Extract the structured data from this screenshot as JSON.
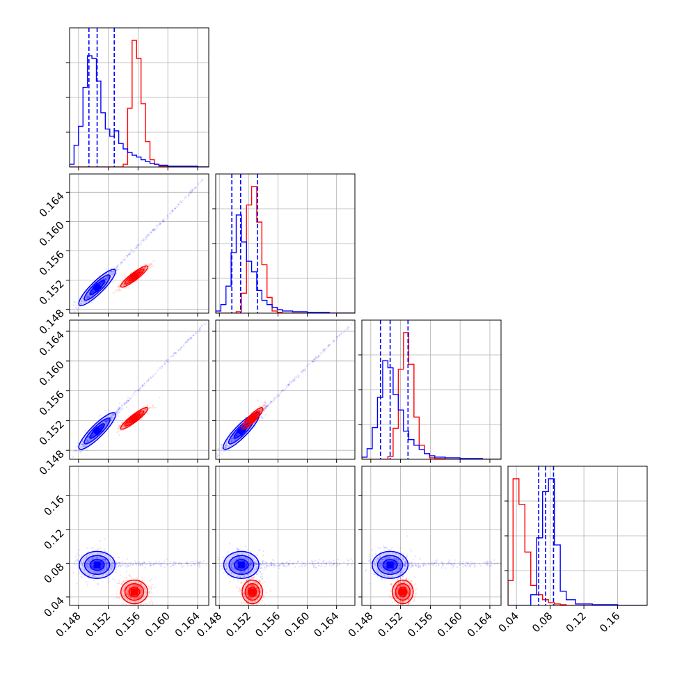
{
  "chart_data": {
    "type": "corner",
    "n_params": 4,
    "series": [
      {
        "name": "",
        "color": "#0000ff"
      },
      {
        "name": "",
        "color": "#ff0000"
      }
    ],
    "axis_ranges": [
      [
        0.1468,
        0.1655
      ],
      [
        0.1475,
        0.1665
      ],
      [
        0.1468,
        0.1655
      ],
      [
        0.03,
        0.195
      ]
    ],
    "ticks": [
      {
        "values": [
          0.148,
          0.152,
          0.156,
          0.16,
          0.164
        ],
        "labels": [
          "0.148",
          "0.152",
          "0.156",
          "0.160",
          "0.164"
        ]
      },
      {
        "values": [
          0.148,
          0.152,
          0.156,
          0.16,
          0.164
        ],
        "labels": [
          "0.148",
          "0.152",
          "0.156",
          "0.160",
          "0.164"
        ]
      },
      {
        "values": [
          0.148,
          0.152,
          0.156,
          0.16,
          0.164
        ],
        "labels": [
          "0.148",
          "0.152",
          "0.156",
          "0.160",
          "0.164"
        ]
      },
      {
        "values": [
          0.04,
          0.08,
          0.12,
          0.16
        ],
        "labels": [
          "0.04",
          "0.08",
          "0.12",
          "0.16"
        ]
      }
    ],
    "histograms": [
      {
        "edges": [
          0.1468,
          0.1474,
          0.148,
          0.1486,
          0.1492,
          0.1498,
          0.1504,
          0.151,
          0.1516,
          0.1522,
          0.1528,
          0.1534,
          0.154,
          0.1546,
          0.1552,
          0.1558,
          0.1564,
          0.157,
          0.1576,
          0.1582,
          0.1588,
          0.16,
          0.162,
          0.164,
          0.1655
        ],
        "blue": [
          3,
          24,
          45,
          88,
          123,
          120,
          95,
          60,
          42,
          34,
          40,
          26,
          20,
          16,
          13,
          11,
          8,
          6,
          4,
          3,
          2,
          1,
          1,
          0
        ],
        "red": [
          0,
          0,
          0,
          0,
          0,
          0,
          0,
          0,
          0,
          0,
          0,
          0,
          3,
          65,
          140,
          120,
          70,
          28,
          8,
          3,
          1,
          0,
          0,
          0
        ],
        "blue_quantiles": [
          0.1494,
          0.1505,
          0.1528
        ]
      },
      {
        "edges": [
          0.1475,
          0.1482,
          0.1489,
          0.1496,
          0.1503,
          0.151,
          0.1517,
          0.1524,
          0.1531,
          0.1538,
          0.1545,
          0.1552,
          0.1559,
          0.1566,
          0.158,
          0.16,
          0.163,
          0.1665
        ],
        "blue": [
          3,
          12,
          38,
          85,
          138,
          100,
          73,
          58,
          32,
          18,
          12,
          8,
          5,
          3,
          2,
          1,
          0
        ],
        "red": [
          0,
          0,
          0,
          0,
          2,
          28,
          152,
          178,
          128,
          68,
          22,
          3,
          1,
          0,
          0,
          0,
          0
        ],
        "blue_quantiles": [
          0.1497,
          0.1509,
          0.1532
        ]
      },
      {
        "edges": [
          0.1468,
          0.1475,
          0.1482,
          0.1489,
          0.1496,
          0.1503,
          0.151,
          0.1517,
          0.1524,
          0.1531,
          0.1538,
          0.1545,
          0.1552,
          0.1559,
          0.1566,
          0.158,
          0.16,
          0.163,
          0.1655
        ],
        "blue": [
          3,
          15,
          45,
          88,
          140,
          130,
          92,
          70,
          40,
          28,
          20,
          14,
          8,
          5,
          3,
          2,
          1,
          0
        ],
        "red": [
          0,
          0,
          0,
          0,
          0,
          4,
          44,
          128,
          180,
          135,
          60,
          20,
          8,
          2,
          1,
          0,
          0,
          0
        ],
        "blue_quantiles": [
          0.1493,
          0.1506,
          0.153
        ]
      },
      {
        "edges": [
          0.03,
          0.036,
          0.043,
          0.05,
          0.057,
          0.064,
          0.071,
          0.078,
          0.085,
          0.092,
          0.099,
          0.11,
          0.13,
          0.16,
          0.195
        ],
        "blue": [
          0,
          0,
          0,
          0,
          15,
          95,
          160,
          178,
          85,
          20,
          8,
          2,
          1,
          0
        ],
        "red": [
          35,
          178,
          142,
          75,
          28,
          15,
          8,
          4,
          2,
          1,
          0,
          0,
          0,
          0
        ],
        "blue_quantiles": [
          0.0664,
          0.0746,
          0.084
        ]
      }
    ],
    "blobs": {
      "blue": {
        "mean": [
          0.1505,
          0.151,
          0.1506,
          0.078
        ],
        "sd": [
          0.0012,
          0.0012,
          0.0012,
          0.008
        ],
        "tail_to": [
          0.165,
          0.166,
          0.165,
          0.08
        ]
      },
      "red": {
        "mean": [
          0.1555,
          0.1525,
          0.1523,
          0.046
        ],
        "sd": [
          0.0009,
          0.0007,
          0.0007,
          0.007
        ]
      }
    }
  }
}
